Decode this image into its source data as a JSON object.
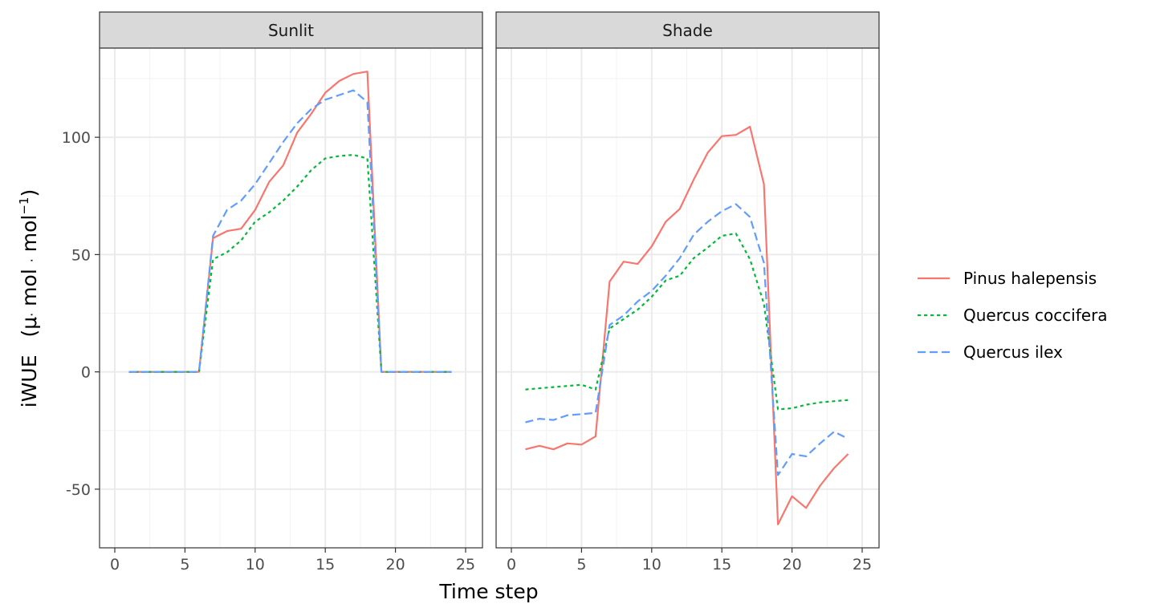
{
  "chart_data": {
    "type": "line",
    "xlabel": "Time step",
    "ylabel": "iWUE",
    "ylabel_units": {
      "open": "(μ",
      "dot1": "·",
      "mol1": " mol ",
      "dot2": "·",
      "mol2": " mol",
      "exp": "−1",
      "close": ")"
    },
    "xlim": [
      0,
      25
    ],
    "ylim": [
      -75,
      138
    ],
    "x_ticks": [
      0,
      5,
      10,
      15,
      20,
      25
    ],
    "y_ticks": [
      -50,
      0,
      50,
      100
    ],
    "x_tick_labels": [
      "0",
      "5",
      "10",
      "15",
      "20",
      "25"
    ],
    "y_tick_labels": [
      "-50",
      "0",
      "50",
      "100"
    ],
    "grid": true,
    "legend_position": "right",
    "x": [
      1,
      2,
      3,
      4,
      5,
      6,
      7,
      8,
      9,
      10,
      11,
      12,
      13,
      14,
      15,
      16,
      17,
      18,
      19,
      20,
      21,
      22,
      23,
      24
    ],
    "series_styles": [
      {
        "name": "Pinus halepensis",
        "color": "#F8766D",
        "dash": "none"
      },
      {
        "name": "Quercus coccifera",
        "color": "#00BA38",
        "dash": "4,4"
      },
      {
        "name": "Quercus ilex",
        "color": "#619CFF",
        "dash": "10,5"
      }
    ],
    "panels": [
      {
        "title": "Sunlit",
        "series": [
          {
            "name": "Pinus halepensis",
            "values": [
              0,
              0,
              0,
              0,
              0,
              0,
              57,
              60,
              61,
              69,
              81,
              88,
              102,
              110,
              119,
              124,
              127,
              128,
              0,
              0,
              0,
              0,
              0,
              0
            ]
          },
          {
            "name": "Quercus coccifera",
            "values": [
              0,
              0,
              0,
              0,
              0,
              0,
              48,
              51,
              56,
              64,
              68,
              73,
              79,
              86,
              91,
              92,
              92.5,
              91,
              0,
              0,
              0,
              0,
              0,
              0
            ]
          },
          {
            "name": "Quercus ilex",
            "values": [
              0,
              0,
              0,
              0,
              0,
              0,
              58,
              69,
              73,
              80,
              89,
              98,
              106,
              112,
              116,
              118,
              120,
              115,
              0,
              0,
              0,
              0,
              0,
              0
            ]
          }
        ]
      },
      {
        "title": "Shade",
        "series": [
          {
            "name": "Pinus halepensis",
            "values": [
              -33,
              -31.5,
              -33,
              -30.5,
              -31,
              -27.5,
              38.5,
              47,
              46,
              53.5,
              64,
              69.5,
              82,
              93.5,
              100.5,
              101,
              104.5,
              80,
              -65,
              -53,
              -58,
              -48.5,
              -41,
              -35
            ]
          },
          {
            "name": "Quercus coccifera",
            "values": [
              -7.5,
              -7,
              -6.5,
              -6,
              -5.5,
              -7.5,
              18.5,
              22.5,
              26.5,
              32,
              39,
              41,
              48.5,
              53,
              58,
              59,
              48,
              29,
              -16,
              -15.5,
              -14,
              -13,
              -12.5,
              -12
            ]
          },
          {
            "name": "Quercus ilex",
            "values": [
              -21.5,
              -20,
              -20.5,
              -18.5,
              -18,
              -17.5,
              20,
              24,
              30,
              34.5,
              41,
              48.5,
              58.5,
              64,
              68.5,
              71.5,
              66,
              46.5,
              -44,
              -35,
              -36,
              -30.5,
              -25.5,
              -28.5
            ]
          }
        ]
      }
    ]
  }
}
